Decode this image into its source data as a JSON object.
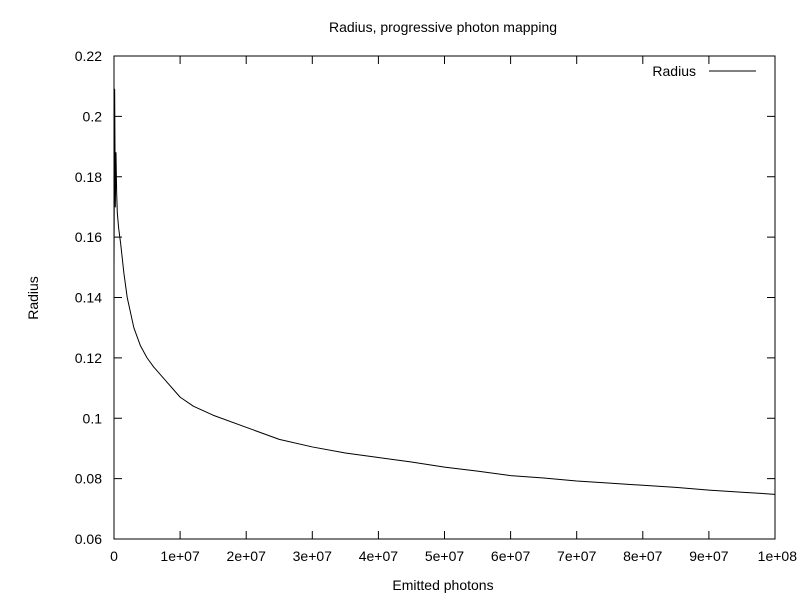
{
  "chart_data": {
    "type": "line",
    "title": "Radius, progressive photon mapping",
    "xlabel": "Emitted photons",
    "ylabel": "Radius",
    "xlim": [
      0,
      100000000
    ],
    "ylim": [
      0.06,
      0.22
    ],
    "x_ticks": [
      {
        "value": 0,
        "label": "0"
      },
      {
        "value": 10000000,
        "label": "1e+07"
      },
      {
        "value": 20000000,
        "label": "2e+07"
      },
      {
        "value": 30000000,
        "label": "3e+07"
      },
      {
        "value": 40000000,
        "label": "4e+07"
      },
      {
        "value": 50000000,
        "label": "5e+07"
      },
      {
        "value": 60000000,
        "label": "6e+07"
      },
      {
        "value": 70000000,
        "label": "7e+07"
      },
      {
        "value": 80000000,
        "label": "8e+07"
      },
      {
        "value": 90000000,
        "label": "9e+07"
      },
      {
        "value": 100000000,
        "label": "1e+08"
      }
    ],
    "y_ticks": [
      {
        "value": 0.06,
        "label": "0.06"
      },
      {
        "value": 0.08,
        "label": "0.08"
      },
      {
        "value": 0.1,
        "label": "0.1"
      },
      {
        "value": 0.12,
        "label": "0.12"
      },
      {
        "value": 0.14,
        "label": "0.14"
      },
      {
        "value": 0.16,
        "label": "0.16"
      },
      {
        "value": 0.18,
        "label": "0.18"
      },
      {
        "value": 0.2,
        "label": "0.2"
      },
      {
        "value": 0.22,
        "label": "0.22"
      }
    ],
    "grid": false,
    "legend": {
      "placement": "top-right"
    },
    "colors": {
      "line": "#000000",
      "axes": "#000000",
      "background": "#ffffff"
    },
    "series": [
      {
        "name": "Radius",
        "x": [
          0,
          100000,
          200000,
          300000,
          400000,
          500000,
          700000,
          1000000,
          1500000,
          2000000,
          3000000,
          4000000,
          5000000,
          6000000,
          8000000,
          10000000,
          12000000,
          15000000,
          20000000,
          25000000,
          30000000,
          35000000,
          40000000,
          45000000,
          50000000,
          55000000,
          60000000,
          65000000,
          70000000,
          75000000,
          80000000,
          85000000,
          90000000,
          95000000,
          100000000
        ],
        "y": [
          0.15,
          0.209,
          0.17,
          0.188,
          0.175,
          0.168,
          0.163,
          0.158,
          0.148,
          0.14,
          0.13,
          0.124,
          0.12,
          0.117,
          0.112,
          0.107,
          0.104,
          0.101,
          0.097,
          0.093,
          0.0905,
          0.0885,
          0.087,
          0.0855,
          0.0838,
          0.0825,
          0.081,
          0.0802,
          0.0792,
          0.0785,
          0.0778,
          0.0771,
          0.0762,
          0.0755,
          0.0748
        ]
      }
    ]
  }
}
